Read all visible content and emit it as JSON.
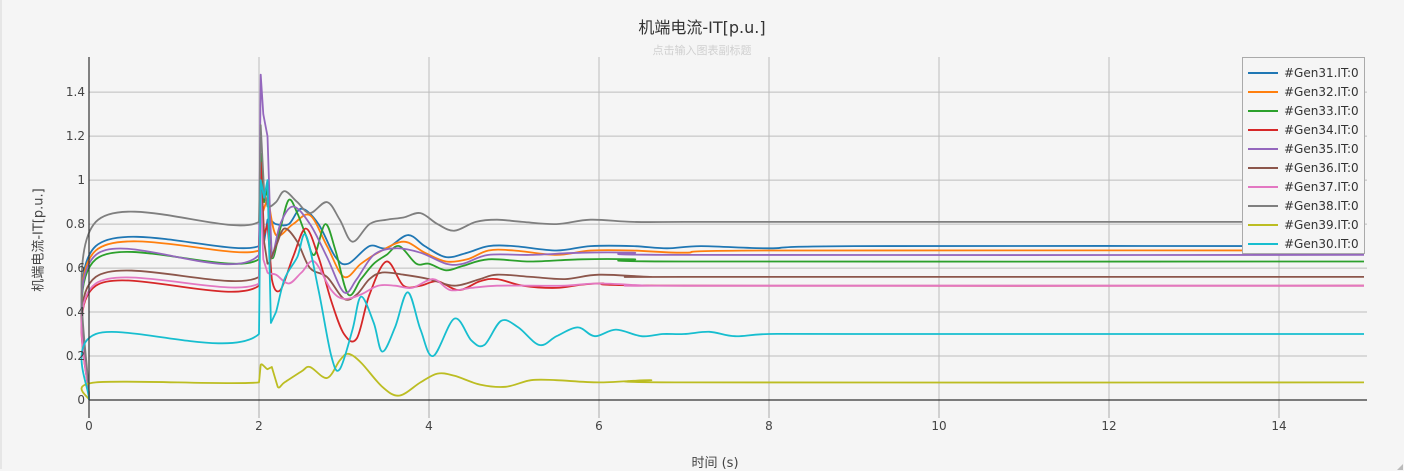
{
  "chart": {
    "title": "机端电流-IT[p.u.]",
    "subtitle_placeholder": "点击输入图表副标题",
    "xlabel": "时间 (s)",
    "ylabel": "机端电流-IT[p.u.]",
    "background": "#f5f5f5"
  },
  "chart_data": {
    "type": "line",
    "title": "机端电流-IT[p.u.]",
    "subtitle": "点击输入图表副标题",
    "xlabel": "时间 (s)",
    "ylabel": "机端电流-IT[p.u.]",
    "xlim": [
      0,
      15
    ],
    "ylim": [
      0,
      1.56
    ],
    "xticks": [
      0,
      2,
      4,
      6,
      8,
      10,
      12,
      14
    ],
    "xtick_labels": [
      "0",
      "2",
      "4",
      "6",
      "8",
      "10",
      "12",
      "14"
    ],
    "yticks": [
      0,
      0.2,
      0.4,
      0.6,
      0.8,
      1.0,
      1.2,
      1.4
    ],
    "ytick_labels": [
      "0",
      "0.2",
      "0.4",
      "0.6",
      "0.8",
      "1",
      "1.2",
      "1.4"
    ],
    "grid": true,
    "legend_position": "top-right",
    "series": [
      {
        "name": "#Gen31.IT:0",
        "color": "#1f77b4",
        "points": [
          [
            0,
            0
          ],
          [
            0.08,
            0.7
          ],
          [
            2.0,
            0.7
          ],
          [
            2.02,
            1.0
          ],
          [
            2.06,
            0.72
          ],
          [
            2.1,
            0.82
          ],
          [
            2.2,
            0.8
          ],
          [
            2.35,
            0.8
          ],
          [
            2.5,
            0.87
          ],
          [
            2.7,
            0.8
          ],
          [
            2.9,
            0.65
          ],
          [
            3.05,
            0.62
          ],
          [
            3.3,
            0.7
          ],
          [
            3.5,
            0.69
          ],
          [
            3.75,
            0.75
          ],
          [
            3.95,
            0.7
          ],
          [
            4.2,
            0.65
          ],
          [
            4.45,
            0.67
          ],
          [
            4.7,
            0.7
          ],
          [
            5.0,
            0.7
          ],
          [
            5.5,
            0.68
          ],
          [
            5.9,
            0.7
          ],
          [
            6.4,
            0.7
          ],
          [
            6.8,
            0.69
          ],
          [
            7.2,
            0.7
          ],
          [
            8,
            0.69
          ],
          [
            9,
            0.7
          ],
          [
            15,
            0.7
          ]
        ]
      },
      {
        "name": "#Gen32.IT:0",
        "color": "#ff7f0e",
        "points": [
          [
            0,
            0
          ],
          [
            0.08,
            0.68
          ],
          [
            2.0,
            0.68
          ],
          [
            2.02,
            0.95
          ],
          [
            2.05,
            0.86
          ],
          [
            2.1,
            0.92
          ],
          [
            2.2,
            0.75
          ],
          [
            2.4,
            0.8
          ],
          [
            2.6,
            0.84
          ],
          [
            2.8,
            0.7
          ],
          [
            3.0,
            0.56
          ],
          [
            3.2,
            0.62
          ],
          [
            3.4,
            0.67
          ],
          [
            3.7,
            0.72
          ],
          [
            3.95,
            0.67
          ],
          [
            4.2,
            0.63
          ],
          [
            4.45,
            0.64
          ],
          [
            4.7,
            0.68
          ],
          [
            5.0,
            0.68
          ],
          [
            5.5,
            0.66
          ],
          [
            5.9,
            0.68
          ],
          [
            6.4,
            0.68
          ],
          [
            7,
            0.67
          ],
          [
            8,
            0.68
          ],
          [
            15,
            0.68
          ]
        ]
      },
      {
        "name": "#Gen33.IT:0",
        "color": "#2ca02c",
        "points": [
          [
            0,
            0
          ],
          [
            0.08,
            0.64
          ],
          [
            2.0,
            0.64
          ],
          [
            2.02,
            1.12
          ],
          [
            2.06,
            0.9
          ],
          [
            2.1,
            0.96
          ],
          [
            2.15,
            0.65
          ],
          [
            2.25,
            0.78
          ],
          [
            2.35,
            0.91
          ],
          [
            2.45,
            0.85
          ],
          [
            2.55,
            0.75
          ],
          [
            2.65,
            0.66
          ],
          [
            2.78,
            0.8
          ],
          [
            2.9,
            0.68
          ],
          [
            3.05,
            0.48
          ],
          [
            3.2,
            0.55
          ],
          [
            3.35,
            0.62
          ],
          [
            3.5,
            0.66
          ],
          [
            3.65,
            0.7
          ],
          [
            3.85,
            0.62
          ],
          [
            4.0,
            0.62
          ],
          [
            4.2,
            0.59
          ],
          [
            4.4,
            0.61
          ],
          [
            4.7,
            0.64
          ],
          [
            5.2,
            0.63
          ],
          [
            5.8,
            0.64
          ],
          [
            6.4,
            0.64
          ],
          [
            7,
            0.63
          ],
          [
            15,
            0.63
          ]
        ]
      },
      {
        "name": "#Gen34.IT:0",
        "color": "#d62728",
        "points": [
          [
            0,
            0
          ],
          [
            0.08,
            0.52
          ],
          [
            2.0,
            0.52
          ],
          [
            2.02,
            1.08
          ],
          [
            2.06,
            0.75
          ],
          [
            2.1,
            0.8
          ],
          [
            2.15,
            0.55
          ],
          [
            2.25,
            0.5
          ],
          [
            2.4,
            0.65
          ],
          [
            2.55,
            0.78
          ],
          [
            2.7,
            0.65
          ],
          [
            2.85,
            0.45
          ],
          [
            3.0,
            0.3
          ],
          [
            3.15,
            0.28
          ],
          [
            3.3,
            0.48
          ],
          [
            3.5,
            0.63
          ],
          [
            3.7,
            0.52
          ],
          [
            3.9,
            0.52
          ],
          [
            4.1,
            0.54
          ],
          [
            4.35,
            0.5
          ],
          [
            4.6,
            0.54
          ],
          [
            4.8,
            0.55
          ],
          [
            5.1,
            0.52
          ],
          [
            5.5,
            0.51
          ],
          [
            6.0,
            0.53
          ],
          [
            7,
            0.52
          ],
          [
            15,
            0.52
          ]
        ]
      },
      {
        "name": "#Gen35.IT:0",
        "color": "#9467bd",
        "points": [
          [
            0,
            0
          ],
          [
            0.08,
            0.66
          ],
          [
            2.0,
            0.66
          ],
          [
            2.02,
            1.48
          ],
          [
            2.05,
            1.3
          ],
          [
            2.1,
            1.2
          ],
          [
            2.13,
            0.85
          ],
          [
            2.15,
            0.65
          ],
          [
            2.25,
            0.8
          ],
          [
            2.4,
            0.88
          ],
          [
            2.6,
            0.8
          ],
          [
            2.8,
            0.65
          ],
          [
            3.0,
            0.49
          ],
          [
            3.15,
            0.55
          ],
          [
            3.35,
            0.66
          ],
          [
            3.6,
            0.69
          ],
          [
            3.9,
            0.67
          ],
          [
            4.2,
            0.62
          ],
          [
            4.4,
            0.62
          ],
          [
            4.7,
            0.66
          ],
          [
            5.2,
            0.66
          ],
          [
            5.8,
            0.67
          ],
          [
            6.4,
            0.67
          ],
          [
            7,
            0.66
          ],
          [
            15,
            0.66
          ]
        ]
      },
      {
        "name": "#Gen36.IT:0",
        "color": "#8c564b",
        "points": [
          [
            0,
            0
          ],
          [
            0.08,
            0.56
          ],
          [
            2.0,
            0.56
          ],
          [
            2.02,
            1.0
          ],
          [
            2.06,
            0.72
          ],
          [
            2.1,
            0.62
          ],
          [
            2.2,
            0.7
          ],
          [
            2.3,
            0.78
          ],
          [
            2.45,
            0.72
          ],
          [
            2.6,
            0.6
          ],
          [
            2.8,
            0.56
          ],
          [
            3.0,
            0.46
          ],
          [
            3.15,
            0.48
          ],
          [
            3.3,
            0.55
          ],
          [
            3.45,
            0.58
          ],
          [
            3.7,
            0.57
          ],
          [
            4.0,
            0.55
          ],
          [
            4.3,
            0.52
          ],
          [
            4.6,
            0.55
          ],
          [
            4.8,
            0.57
          ],
          [
            5.2,
            0.56
          ],
          [
            5.6,
            0.55
          ],
          [
            6.0,
            0.57
          ],
          [
            6.6,
            0.56
          ],
          [
            7,
            0.56
          ],
          [
            15,
            0.56
          ]
        ]
      },
      {
        "name": "#Gen37.IT:0",
        "color": "#e377c2",
        "points": [
          [
            0,
            0
          ],
          [
            0.08,
            0.53
          ],
          [
            2.0,
            0.53
          ],
          [
            2.02,
            0.95
          ],
          [
            2.05,
            0.64
          ],
          [
            2.1,
            0.58
          ],
          [
            2.2,
            0.57
          ],
          [
            2.35,
            0.53
          ],
          [
            2.5,
            0.58
          ],
          [
            2.65,
            0.63
          ],
          [
            2.85,
            0.5
          ],
          [
            3.0,
            0.46
          ],
          [
            3.2,
            0.48
          ],
          [
            3.4,
            0.52
          ],
          [
            3.6,
            0.52
          ],
          [
            3.8,
            0.51
          ],
          [
            4.05,
            0.55
          ],
          [
            4.25,
            0.5
          ],
          [
            4.5,
            0.51
          ],
          [
            4.8,
            0.52
          ],
          [
            5.2,
            0.52
          ],
          [
            5.6,
            0.52
          ],
          [
            6.0,
            0.53
          ],
          [
            6.6,
            0.52
          ],
          [
            7,
            0.52
          ],
          [
            15,
            0.52
          ]
        ]
      },
      {
        "name": "#Gen38.IT:0",
        "color": "#7f7f7f",
        "points": [
          [
            0,
            0
          ],
          [
            0.08,
            0.81
          ],
          [
            2.0,
            0.81
          ],
          [
            2.02,
            1.25
          ],
          [
            2.06,
            0.95
          ],
          [
            2.1,
            0.88
          ],
          [
            2.2,
            0.9
          ],
          [
            2.3,
            0.95
          ],
          [
            2.45,
            0.9
          ],
          [
            2.6,
            0.85
          ],
          [
            2.8,
            0.9
          ],
          [
            2.95,
            0.82
          ],
          [
            3.1,
            0.72
          ],
          [
            3.3,
            0.8
          ],
          [
            3.5,
            0.82
          ],
          [
            3.7,
            0.83
          ],
          [
            3.9,
            0.85
          ],
          [
            4.1,
            0.8
          ],
          [
            4.3,
            0.77
          ],
          [
            4.55,
            0.81
          ],
          [
            4.8,
            0.82
          ],
          [
            5.1,
            0.81
          ],
          [
            5.5,
            0.8
          ],
          [
            5.9,
            0.82
          ],
          [
            6.4,
            0.81
          ],
          [
            7,
            0.81
          ],
          [
            8,
            0.81
          ],
          [
            15,
            0.81
          ]
        ]
      },
      {
        "name": "#Gen39.IT:0",
        "color": "#bcbd22",
        "points": [
          [
            0,
            0
          ],
          [
            0.08,
            0.08
          ],
          [
            2.0,
            0.08
          ],
          [
            2.02,
            0.16
          ],
          [
            2.1,
            0.14
          ],
          [
            2.15,
            0.15
          ],
          [
            2.22,
            0.06
          ],
          [
            2.3,
            0.08
          ],
          [
            2.5,
            0.13
          ],
          [
            2.6,
            0.15
          ],
          [
            2.8,
            0.1
          ],
          [
            2.95,
            0.18
          ],
          [
            3.05,
            0.21
          ],
          [
            3.2,
            0.17
          ],
          [
            3.45,
            0.06
          ],
          [
            3.65,
            0.02
          ],
          [
            3.9,
            0.08
          ],
          [
            4.1,
            0.12
          ],
          [
            4.3,
            0.11
          ],
          [
            4.6,
            0.07
          ],
          [
            4.9,
            0.06
          ],
          [
            5.2,
            0.09
          ],
          [
            5.5,
            0.09
          ],
          [
            6.0,
            0.08
          ],
          [
            6.6,
            0.09
          ],
          [
            7,
            0.08
          ],
          [
            15,
            0.08
          ]
        ]
      },
      {
        "name": "#Gen30.IT:0",
        "color": "#17becf",
        "points": [
          [
            0,
            0
          ],
          [
            0.08,
            0.3
          ],
          [
            2.0,
            0.3
          ],
          [
            2.02,
            1.0
          ],
          [
            2.06,
            0.92
          ],
          [
            2.1,
            1.0
          ],
          [
            2.14,
            0.35
          ],
          [
            2.2,
            0.4
          ],
          [
            2.3,
            0.55
          ],
          [
            2.45,
            0.65
          ],
          [
            2.55,
            0.75
          ],
          [
            2.7,
            0.5
          ],
          [
            2.85,
            0.2
          ],
          [
            2.95,
            0.14
          ],
          [
            3.1,
            0.32
          ],
          [
            3.2,
            0.47
          ],
          [
            3.35,
            0.35
          ],
          [
            3.45,
            0.22
          ],
          [
            3.6,
            0.33
          ],
          [
            3.75,
            0.49
          ],
          [
            3.9,
            0.32
          ],
          [
            4.05,
            0.2
          ],
          [
            4.3,
            0.37
          ],
          [
            4.5,
            0.27
          ],
          [
            4.65,
            0.25
          ],
          [
            4.85,
            0.36
          ],
          [
            5.05,
            0.33
          ],
          [
            5.3,
            0.25
          ],
          [
            5.5,
            0.29
          ],
          [
            5.75,
            0.33
          ],
          [
            5.95,
            0.29
          ],
          [
            6.2,
            0.32
          ],
          [
            6.5,
            0.29
          ],
          [
            6.75,
            0.3
          ],
          [
            7.0,
            0.3
          ],
          [
            7.3,
            0.31
          ],
          [
            7.6,
            0.29
          ],
          [
            8.0,
            0.3
          ],
          [
            9,
            0.3
          ],
          [
            15,
            0.3
          ]
        ]
      }
    ]
  }
}
